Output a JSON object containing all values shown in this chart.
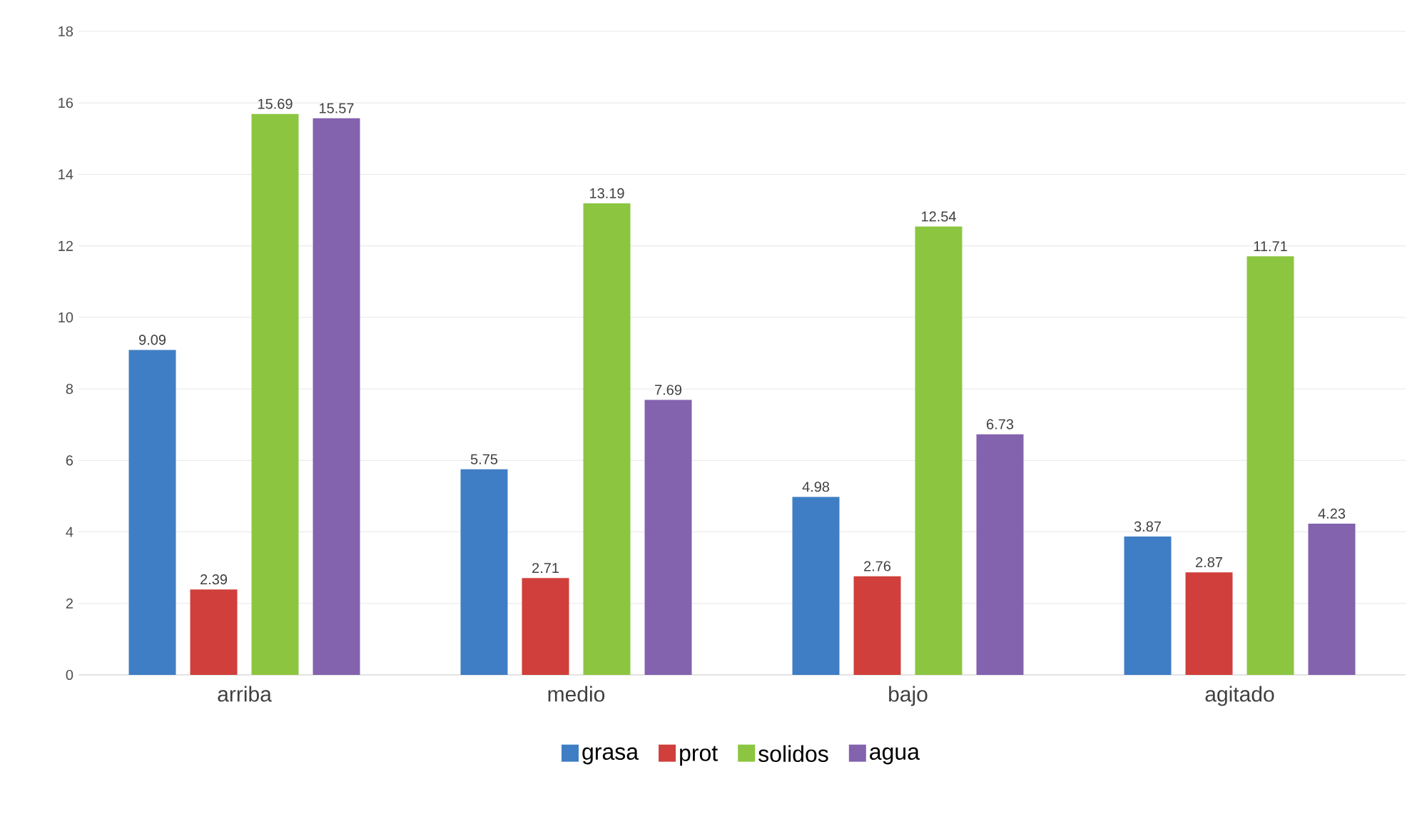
{
  "chart_data": {
    "type": "bar",
    "categories": [
      "arriba",
      "medio",
      "bajo",
      "agitado"
    ],
    "series": [
      {
        "name": "grasa",
        "color": "#3f7ec4",
        "values": [
          9.09,
          5.75,
          4.98,
          3.87
        ]
      },
      {
        "name": "prot",
        "color": "#d03f3b",
        "values": [
          2.39,
          2.71,
          2.76,
          2.87
        ]
      },
      {
        "name": "solidos",
        "color": "#8cc640",
        "values": [
          15.69,
          13.19,
          12.54,
          11.71
        ]
      },
      {
        "name": "agua",
        "color": "#8362ae",
        "values": [
          15.57,
          7.69,
          6.73,
          4.23
        ]
      }
    ],
    "ylim": [
      0,
      18
    ],
    "yticks": [
      0,
      2,
      4,
      6,
      8,
      10,
      12,
      14,
      16,
      18
    ],
    "grid": "y",
    "legend": "bottom",
    "data_labels": true
  }
}
